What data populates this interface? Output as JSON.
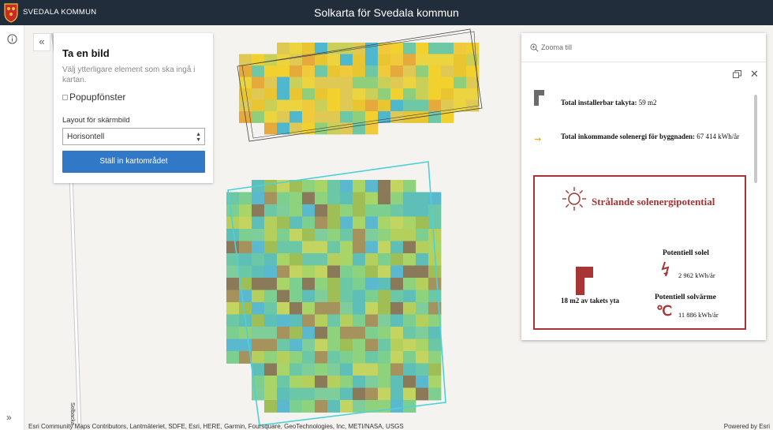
{
  "header": {
    "org_name": "SVEDALA KOMMUN",
    "app_title": "Solkarta för Svedala kommun",
    "logo_icon": "coat-of-arms-icon"
  },
  "sidebar": {
    "info_icon": "info-icon",
    "expand_label": "»"
  },
  "print_panel": {
    "collapse_label": "«",
    "title": "Ta en bild",
    "description": "Välj ytterligare element som ska ingå i kartan.",
    "popup_option": "Popupfönster",
    "layout_label": "Layout för skärmbild",
    "layout_value": "Horisontell",
    "setup_button": "Ställ in kartområdet"
  },
  "popup": {
    "zoom_label": "Zooma till",
    "installable_label": "Total installerbar takyta:",
    "installable_value": "59 m2",
    "incoming_label": "Total inkommande solenergi för byggnaden:",
    "incoming_value": "67 414 kWh/år",
    "callout_title": "Strålande solenergipotential",
    "area_label": "18 m2 av takets yta",
    "electricity_title": "Potentiell solel",
    "electricity_value": "2 962 kWh/år",
    "heat_title": "Potentiell solvärme",
    "heat_value": "11 886 kWh/år",
    "accent_color": "#a63534"
  },
  "map": {
    "road_label": "Solbacka",
    "attribution": "Esri Community Maps Contributors, Lantmäteriet, SDFE, Esri, HERE, Garmin, Foursquare, GeoTechnologies, Inc, METI/NASA, USGS",
    "powered_by": "Powered by Esri"
  }
}
